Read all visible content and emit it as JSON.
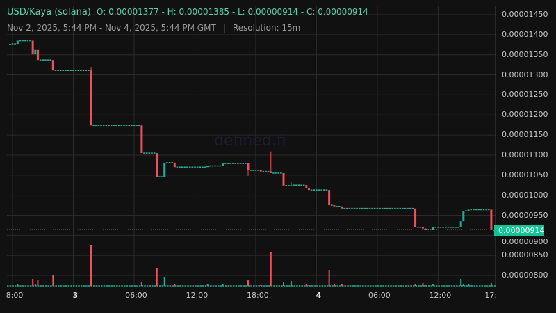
{
  "header": {
    "pair": "USD/Kaya (solana)",
    "ohlc": "O: 0.00001377 - H: 0.00001385 - L: 0.00000914 - C: 0.00000914",
    "range": "Nov 2, 2025, 5:44 PM - Nov 4, 2025, 5:44 PM GMT",
    "separator": "|",
    "resolution": "Resolution: 15m"
  },
  "watermark": "defined.fi",
  "current_price": "0.00000914",
  "colors": {
    "up": "#22ab94",
    "down": "#f0505a",
    "current_label_bg": "#12c394",
    "text": "#5ccfad"
  },
  "price_axis": [
    "0.00001450",
    "0.00001400",
    "0.00001350",
    "0.00001300",
    "0.00001250",
    "0.00001200",
    "0.00001150",
    "0.00001100",
    "0.00001050",
    "0.00001000",
    "0.00000950",
    "0.00000900",
    "0.00000850",
    "0.00000800"
  ],
  "time_axis": [
    {
      "label": "8:00",
      "t": "2025-11-02T18:00",
      "day": false
    },
    {
      "label": "3",
      "t": "2025-11-03T00:00",
      "day": true
    },
    {
      "label": "06:00",
      "t": "2025-11-03T06:00",
      "day": false
    },
    {
      "label": "12:00",
      "t": "2025-11-03T12:00",
      "day": false
    },
    {
      "label": "18:00",
      "t": "2025-11-03T18:00",
      "day": false
    },
    {
      "label": "4",
      "t": "2025-11-04T00:00",
      "day": true
    },
    {
      "label": "06:00",
      "t": "2025-11-04T06:00",
      "day": false
    },
    {
      "label": "12:00",
      "t": "2025-11-04T12:00",
      "day": false
    },
    {
      "label": "17:",
      "t": "2025-11-04T17:00",
      "day": false
    }
  ],
  "chart_data": {
    "type": "candlestick",
    "resolution_minutes": 15,
    "price_unit": 1e-08,
    "ylim": [
      790,
      1470
    ],
    "candles": [
      {
        "t": "2025-11-02T17:45",
        "o": 1377,
        "h": 1377,
        "l": 1377,
        "c": 1377,
        "v": 0
      },
      {
        "t": "2025-11-02T18:30",
        "o": 1377,
        "h": 1385,
        "l": 1377,
        "c": 1385,
        "v": 2
      },
      {
        "t": "2025-11-02T20:00",
        "o": 1385,
        "h": 1385,
        "l": 1351,
        "c": 1351,
        "v": 10
      },
      {
        "t": "2025-11-02T20:15",
        "o": 1351,
        "h": 1362,
        "l": 1351,
        "c": 1362,
        "v": 2
      },
      {
        "t": "2025-11-02T20:30",
        "o": 1362,
        "h": 1362,
        "l": 1337,
        "c": 1337,
        "v": 9
      },
      {
        "t": "2025-11-02T22:00",
        "o": 1337,
        "h": 1337,
        "l": 1311,
        "c": 1311,
        "v": 15
      },
      {
        "t": "2025-11-03T01:45",
        "o": 1311,
        "h": 1318,
        "l": 1174,
        "c": 1174,
        "v": 59
      },
      {
        "t": "2025-11-03T06:45",
        "o": 1174,
        "h": 1174,
        "l": 1105,
        "c": 1105,
        "v": 5
      },
      {
        "t": "2025-11-03T08:15",
        "o": 1105,
        "h": 1105,
        "l": 1046,
        "c": 1046,
        "v": 25
      },
      {
        "t": "2025-11-03T09:00",
        "o": 1046,
        "h": 1081,
        "l": 1046,
        "c": 1081,
        "v": 13
      },
      {
        "t": "2025-11-03T10:00",
        "o": 1081,
        "h": 1081,
        "l": 1070,
        "c": 1070,
        "v": 2
      },
      {
        "t": "2025-11-03T13:15",
        "o": 1070,
        "h": 1073,
        "l": 1070,
        "c": 1073,
        "v": 2
      },
      {
        "t": "2025-11-03T14:45",
        "o": 1073,
        "h": 1079,
        "l": 1073,
        "c": 1079,
        "v": 3
      },
      {
        "t": "2025-11-03T17:15",
        "o": 1079,
        "h": 1079,
        "l": 1048,
        "c": 1062,
        "v": 9
      },
      {
        "t": "2025-11-03T18:30",
        "o": 1062,
        "h": 1062,
        "l": 1059,
        "c": 1059,
        "v": 1
      },
      {
        "t": "2025-11-03T19:30",
        "o": 1059,
        "h": 1109,
        "l": 1055,
        "c": 1055,
        "v": 49
      },
      {
        "t": "2025-11-03T20:45",
        "o": 1055,
        "h": 1055,
        "l": 1024,
        "c": 1024,
        "v": 6
      },
      {
        "t": "2025-11-03T21:30",
        "o": 1024,
        "h": 1034,
        "l": 1024,
        "c": 1025,
        "v": 7
      },
      {
        "t": "2025-11-03T23:00",
        "o": 1025,
        "h": 1025,
        "l": 1018,
        "c": 1018,
        "v": 2
      },
      {
        "t": "2025-11-03T23:15",
        "o": 1018,
        "h": 1018,
        "l": 1013,
        "c": 1013,
        "v": 1
      },
      {
        "t": "2025-11-04T01:15",
        "o": 1013,
        "h": 1013,
        "l": 975,
        "c": 975,
        "v": 23
      },
      {
        "t": "2025-11-04T01:45",
        "o": 975,
        "h": 975,
        "l": 972,
        "c": 972,
        "v": 2
      },
      {
        "t": "2025-11-04T02:30",
        "o": 972,
        "h": 972,
        "l": 967,
        "c": 967,
        "v": 2
      },
      {
        "t": "2025-11-04T09:45",
        "o": 967,
        "h": 967,
        "l": 920,
        "c": 920,
        "v": 2
      },
      {
        "t": "2025-11-04T10:30",
        "o": 920,
        "h": 920,
        "l": 917,
        "c": 917,
        "v": 4
      },
      {
        "t": "2025-11-04T10:45",
        "o": 917,
        "h": 917,
        "l": 914,
        "c": 914,
        "v": 1
      },
      {
        "t": "2025-11-04T11:30",
        "o": 914,
        "h": 920,
        "l": 914,
        "c": 920,
        "v": 2
      },
      {
        "t": "2025-11-04T14:15",
        "o": 920,
        "h": 935,
        "l": 920,
        "c": 935,
        "v": 10
      },
      {
        "t": "2025-11-04T14:30",
        "o": 935,
        "h": 961,
        "l": 935,
        "c": 961,
        "v": 2
      },
      {
        "t": "2025-11-04T15:00",
        "o": 961,
        "h": 964,
        "l": 961,
        "c": 964,
        "v": 2
      },
      {
        "t": "2025-11-04T17:15",
        "o": 964,
        "h": 964,
        "l": 914,
        "c": 914,
        "v": 4
      },
      {
        "t": "2025-11-04T17:30",
        "o": 914,
        "h": 914,
        "l": 914,
        "c": 914,
        "v": 0
      }
    ]
  }
}
